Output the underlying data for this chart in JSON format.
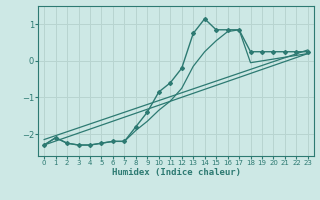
{
  "xlabel": "Humidex (Indice chaleur)",
  "bg_color": "#cde8e5",
  "grid_color": "#b8d4d0",
  "line_color": "#2d7a72",
  "xlim": [
    -0.5,
    23.5
  ],
  "ylim": [
    -2.6,
    1.5
  ],
  "yticks": [
    -2,
    -1,
    0,
    1
  ],
  "xticks": [
    0,
    1,
    2,
    3,
    4,
    5,
    6,
    7,
    8,
    9,
    10,
    11,
    12,
    13,
    14,
    15,
    16,
    17,
    18,
    19,
    20,
    21,
    22,
    23
  ],
  "curve_x": [
    0,
    1,
    2,
    3,
    4,
    5,
    6,
    7,
    8,
    9,
    10,
    11,
    12,
    13,
    14,
    15,
    16,
    17,
    18,
    19,
    20,
    21,
    22,
    23
  ],
  "curve_y": [
    -2.3,
    -2.1,
    -2.25,
    -2.3,
    -2.3,
    -2.25,
    -2.2,
    -2.2,
    -1.8,
    -1.4,
    -0.85,
    -0.6,
    -0.2,
    0.75,
    1.15,
    0.85,
    0.85,
    0.85,
    0.25,
    0.25,
    0.25,
    0.25,
    0.25,
    0.25
  ],
  "line2_x": [
    0,
    1,
    2,
    3,
    4,
    5,
    6,
    7,
    8,
    9,
    10,
    11,
    12,
    13,
    14,
    15,
    16,
    17,
    18,
    19,
    20,
    21,
    22,
    23
  ],
  "line2_y": [
    -2.3,
    -2.1,
    -2.25,
    -2.3,
    -2.3,
    -2.25,
    -2.2,
    -2.2,
    -1.9,
    -1.65,
    -1.35,
    -1.1,
    -0.75,
    -0.15,
    0.25,
    0.55,
    0.8,
    0.85,
    -0.05,
    0.0,
    0.05,
    0.1,
    0.15,
    0.2
  ],
  "line3_x": [
    0,
    23
  ],
  "line3_y": [
    -2.3,
    0.2
  ],
  "line4_x": [
    0,
    23
  ],
  "line4_y": [
    -2.15,
    0.3
  ]
}
